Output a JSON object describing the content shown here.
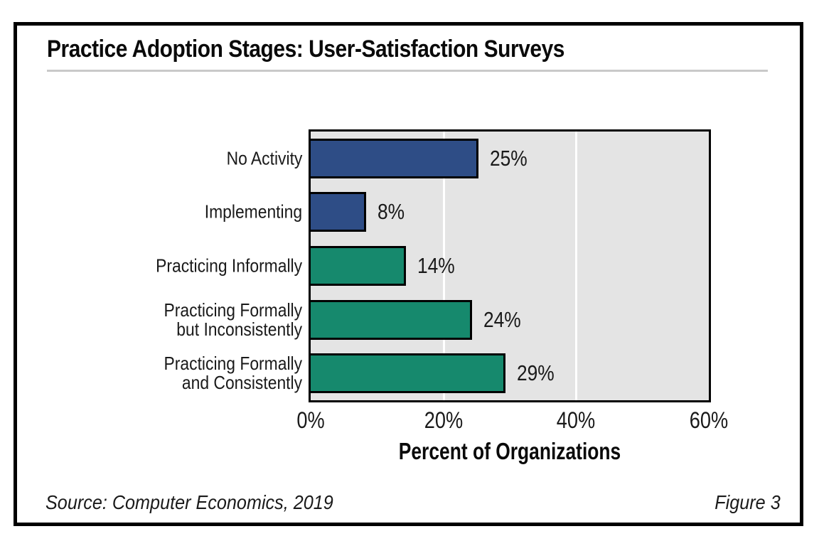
{
  "figure": {
    "title": "Practice Adoption Stages: User-Satisfaction Surveys",
    "source": "Source: Computer Economics, 2019",
    "figure_label": "Figure 3"
  },
  "chart_data": {
    "type": "bar",
    "orientation": "horizontal",
    "title": "Practice Adoption Stages: User-Satisfaction Surveys",
    "categories": [
      "No Activity",
      "Implementing",
      "Practicing Informally",
      "Practicing Formally but Inconsistently",
      "Practicing Formally and Consistently"
    ],
    "category_lines": [
      [
        "No Activity"
      ],
      [
        "Implementing"
      ],
      [
        "Practicing Informally"
      ],
      [
        "Practicing Formally",
        "but Inconsistently"
      ],
      [
        "Practicing Formally",
        "and Consistently"
      ]
    ],
    "values": [
      25,
      8,
      14,
      24,
      29
    ],
    "value_labels": [
      "25%",
      "8%",
      "14%",
      "24%",
      "29%"
    ],
    "bar_colors": [
      "#2e4d86",
      "#2e4d86",
      "#16896d",
      "#16896d",
      "#16896d"
    ],
    "xlabel": "Percent of Organizations",
    "x_ticks": [
      {
        "value": 0,
        "label": "0%"
      },
      {
        "value": 20,
        "label": "20%"
      },
      {
        "value": 40,
        "label": "40%"
      },
      {
        "value": 60,
        "label": "60%"
      }
    ],
    "xlim": [
      0,
      60
    ],
    "gridlines": [
      20,
      40
    ],
    "grid_on": true,
    "legend": "none",
    "plot_background": "#e4e4e4",
    "gridline_color": "#ffffff"
  }
}
